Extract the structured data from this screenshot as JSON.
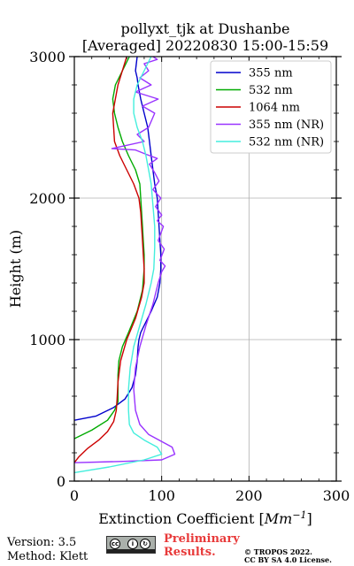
{
  "chart_data": {
    "type": "line",
    "title_line1": "pollyxt_tjk at Dushanbe",
    "title_line2": "[Averaged] 20220830 15:00-15:59",
    "xlabel": "Extinction Coefficient [Mm",
    "xlabel_sup": "−1",
    "xlabel_end": "]",
    "ylabel": "Height (m)",
    "xlim": [
      0,
      300
    ],
    "ylim": [
      0,
      3000
    ],
    "xticks": [
      "0",
      "100",
      "200",
      "300"
    ],
    "yticks": [
      "0",
      "1000",
      "2000",
      "3000"
    ],
    "grid": true,
    "legend_position": "top-right",
    "series": [
      {
        "name": "355 nm",
        "color": "#0000cc",
        "x": [
          0,
          25,
          45,
          58,
          66,
          70,
          72,
          73,
          74,
          76,
          80,
          88,
          95,
          98,
          99,
          99,
          98,
          97,
          96,
          95,
          92,
          90,
          88,
          86,
          84,
          80,
          76,
          73,
          72,
          70,
          72
        ],
        "y": [
          430,
          460,
          520,
          580,
          660,
          750,
          850,
          950,
          1000,
          1050,
          1100,
          1200,
          1300,
          1400,
          1500,
          1600,
          1700,
          1800,
          1900,
          2000,
          2100,
          2200,
          2300,
          2400,
          2500,
          2600,
          2700,
          2800,
          2850,
          2900,
          3000
        ]
      },
      {
        "name": "532 nm",
        "color": "#00aa00",
        "x": [
          0,
          20,
          38,
          46,
          50,
          50,
          50,
          51,
          55,
          62,
          72,
          78,
          80,
          80,
          79,
          78,
          77,
          76,
          75,
          70,
          62,
          55,
          50,
          46,
          44,
          47,
          55,
          63
        ],
        "y": [
          300,
          360,
          430,
          500,
          560,
          650,
          750,
          850,
          950,
          1050,
          1200,
          1350,
          1500,
          1600,
          1700,
          1800,
          1900,
          2000,
          2100,
          2200,
          2300,
          2400,
          2500,
          2600,
          2700,
          2800,
          2900,
          3000
        ]
      },
      {
        "name": "1064 nm",
        "color": "#cc0000",
        "x": [
          0,
          5,
          15,
          28,
          38,
          45,
          48,
          49,
          50,
          53,
          60,
          70,
          77,
          80,
          80,
          79,
          78,
          77,
          76,
          74,
          68,
          60,
          52,
          46,
          44,
          50,
          60
        ],
        "y": [
          130,
          170,
          230,
          290,
          350,
          420,
          500,
          580,
          700,
          850,
          1000,
          1150,
          1300,
          1400,
          1500,
          1600,
          1700,
          1800,
          1900,
          2000,
          2100,
          2200,
          2300,
          2400,
          2600,
          2800,
          3000
        ]
      },
      {
        "name": "355 nm (NR)",
        "color": "#9933ff",
        "x": [
          0,
          60,
          100,
          115,
          112,
          100,
          85,
          75,
          70,
          68,
          70,
          75,
          82,
          90,
          96,
          100,
          104,
          98,
          103,
          96,
          102,
          95,
          100,
          93,
          99,
          90,
          97,
          92,
          86,
          95,
          82,
          70,
          43,
          80,
          72,
          85,
          92,
          78,
          96,
          70,
          88,
          75,
          85,
          80,
          95,
          90
        ],
        "y": [
          130,
          140,
          150,
          190,
          240,
          280,
          330,
          400,
          500,
          650,
          800,
          950,
          1100,
          1250,
          1400,
          1480,
          1520,
          1560,
          1640,
          1700,
          1800,
          1840,
          1880,
          1940,
          2000,
          2060,
          2120,
          2180,
          2240,
          2280,
          2310,
          2340,
          2350,
          2400,
          2450,
          2500,
          2600,
          2650,
          2700,
          2750,
          2800,
          2850,
          2900,
          2950,
          2980,
          3000
        ]
      },
      {
        "name": "532 nm (NR)",
        "color": "#44eedd",
        "x": [
          0,
          40,
          80,
          100,
          95,
          80,
          68,
          63,
          62,
          62,
          64,
          68,
          75,
          82,
          88,
          91,
          92,
          92,
          90,
          88,
          85,
          82,
          78,
          72,
          68,
          68,
          72,
          80,
          88
        ],
        "y": [
          60,
          100,
          150,
          190,
          240,
          290,
          340,
          400,
          500,
          650,
          800,
          950,
          1100,
          1250,
          1400,
          1500,
          1650,
          1800,
          1950,
          2100,
          2200,
          2300,
          2400,
          2500,
          2600,
          2700,
          2800,
          2900,
          3000
        ]
      }
    ]
  },
  "footer": {
    "version": "Version: 3.5",
    "method": "Method: Klett",
    "preliminary_line1": "Preliminary",
    "preliminary_line2": "Results.",
    "copyright_line1": "© TROPOS 2022.",
    "copyright_line2": "CC BY SA 4.0 License.",
    "badge_cc": "cc",
    "badge_by": "BY",
    "badge_sa": "SA"
  }
}
